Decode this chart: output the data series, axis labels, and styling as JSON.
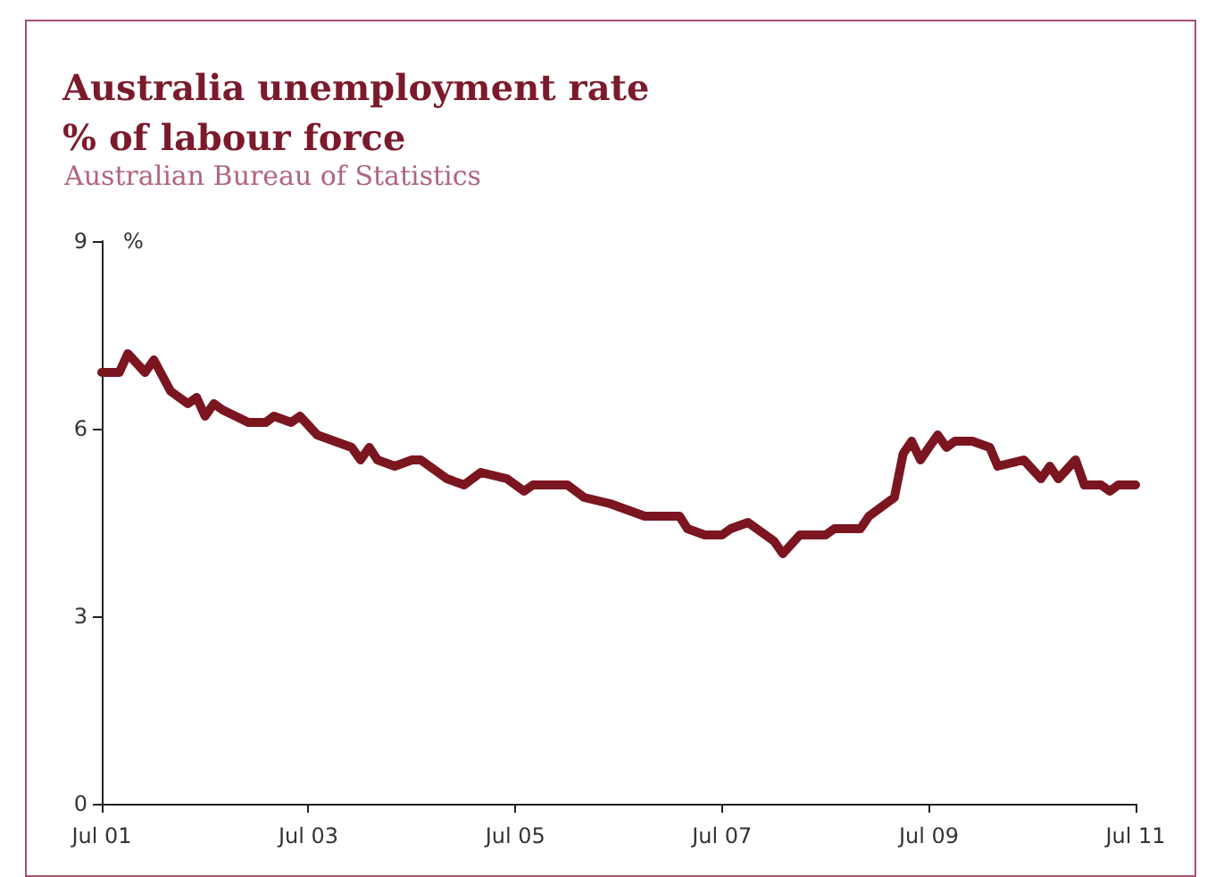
{
  "chart_data": {
    "type": "line",
    "title": "Australia unemployment rate\n% of labour force",
    "annotations": [
      "Australian Bureau of Statistics"
    ],
    "ylabel": "%",
    "x": [
      "2001-07",
      "2001-09",
      "2001-10",
      "2001-12",
      "2002-01",
      "2002-03",
      "2002-05",
      "2002-06",
      "2002-07",
      "2002-08",
      "2002-09",
      "2002-12",
      "2003-02",
      "2003-03",
      "2003-05",
      "2003-06",
      "2003-08",
      "2003-10",
      "2003-12",
      "2004-01",
      "2004-02",
      "2004-03",
      "2004-05",
      "2004-07",
      "2004-08",
      "2004-11",
      "2005-01",
      "2005-03",
      "2005-06",
      "2005-08",
      "2005-09",
      "2005-11",
      "2006-01",
      "2006-03",
      "2006-06",
      "2006-08",
      "2006-10",
      "2007-01",
      "2007-02",
      "2007-03",
      "2007-05",
      "2007-07",
      "2007-08",
      "2007-10",
      "2008-01",
      "2008-02",
      "2008-04",
      "2008-06",
      "2008-07",
      "2008-08",
      "2008-11",
      "2008-12",
      "2009-03",
      "2009-04",
      "2009-05",
      "2009-06",
      "2009-07",
      "2009-08",
      "2009-09",
      "2009-10",
      "2009-12",
      "2010-02",
      "2010-03",
      "2010-06",
      "2010-08",
      "2010-09",
      "2010-10",
      "2010-12",
      "2011-01",
      "2011-03",
      "2011-04",
      "2011-05",
      "2011-06",
      "2011-07"
    ],
    "series": [
      {
        "color": "#7b1520",
        "values": [
          6.9,
          6.9,
          7.2,
          6.9,
          7.1,
          6.6,
          6.4,
          6.5,
          6.2,
          6.4,
          6.3,
          6.1,
          6.1,
          6.2,
          6.1,
          6.2,
          5.9,
          5.8,
          5.7,
          5.5,
          5.7,
          5.5,
          5.4,
          5.5,
          5.5,
          5.2,
          5.1,
          5.3,
          5.2,
          5.0,
          5.1,
          5.1,
          5.1,
          4.9,
          4.8,
          4.7,
          4.6,
          4.6,
          4.6,
          4.4,
          4.3,
          4.3,
          4.4,
          4.5,
          4.2,
          4.0,
          4.3,
          4.3,
          4.3,
          4.4,
          4.4,
          4.6,
          4.9,
          5.6,
          5.8,
          5.5,
          5.7,
          5.9,
          5.7,
          5.8,
          5.8,
          5.7,
          5.4,
          5.5,
          5.2,
          5.4,
          5.2,
          5.5,
          5.1,
          5.1,
          5.0,
          5.1,
          5.1,
          5.1
        ]
      }
    ],
    "xlim": [
      "2001-07",
      "2011-07"
    ],
    "xticks": [
      {
        "value": "2001-07",
        "label": "Jul 01"
      },
      {
        "value": "2003-07",
        "label": "Jul 03"
      },
      {
        "value": "2005-07",
        "label": "Jul 05"
      },
      {
        "value": "2007-07",
        "label": "Jul 07"
      },
      {
        "value": "2009-07",
        "label": "Jul 09"
      },
      {
        "value": "2011-07",
        "label": "Jul 11"
      }
    ],
    "ylim": [
      0,
      9
    ],
    "yticks": [
      0,
      3,
      6,
      9
    ],
    "grid": false,
    "marker": "none",
    "line_style": "solid"
  }
}
